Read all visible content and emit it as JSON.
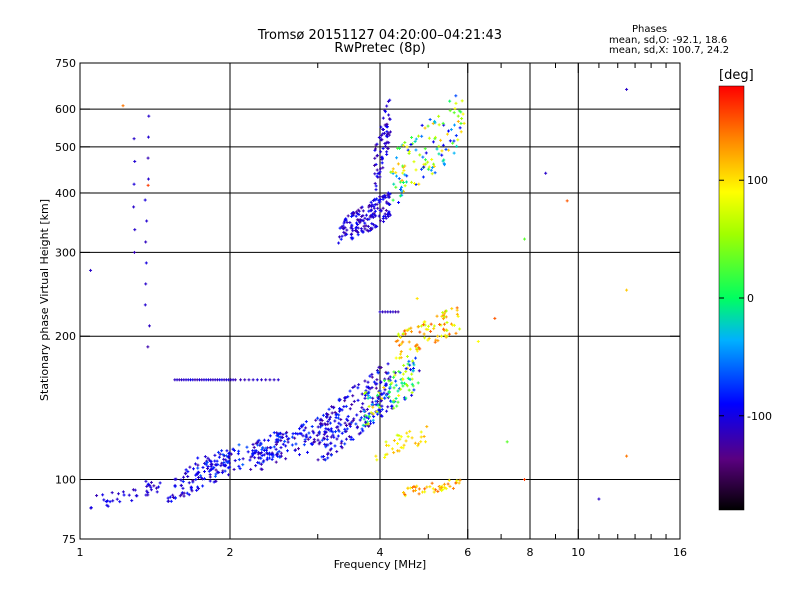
{
  "title": {
    "line1": "Tromsø 20151127 04:20:00–04:21:43",
    "line2": "RwPretec (8p)"
  },
  "annotation": {
    "heading": "Phases",
    "line1": "mean, sd,O: -92.1, 18.6",
    "line2": "mean, sd,X: 100.7, 24.2"
  },
  "colorbar": {
    "unit": "[deg]",
    "range": [
      -180,
      180
    ],
    "ticks": [
      100,
      0,
      -100
    ],
    "tick_labels": [
      "100",
      "0",
      "-100"
    ]
  },
  "chart_data": {
    "type": "scatter",
    "xlabel": "Frequency [MHz]",
    "ylabel": "Stationary phase Virtual Height [km]",
    "xscale": "log",
    "yscale": "log",
    "xlim": [
      1,
      16
    ],
    "ylim": [
      75,
      750
    ],
    "grid": true,
    "x_ticks": [
      1,
      2,
      4,
      6,
      8,
      10,
      16
    ],
    "x_tick_labels": [
      "1",
      "2",
      "4",
      "6",
      "8",
      "10",
      "16"
    ],
    "x_major_grid": [
      2,
      4,
      6,
      8,
      10
    ],
    "x_minor_ticks": [
      3,
      5,
      7,
      9,
      11,
      12,
      13,
      14,
      15
    ],
    "y_ticks": [
      75,
      100,
      200,
      300,
      400,
      500,
      600,
      750
    ],
    "y_tick_labels": [
      "75",
      "100",
      "200",
      "300",
      "400",
      "500",
      "600",
      "750"
    ],
    "y_major_grid": [
      100,
      200,
      300,
      400,
      500,
      600
    ],
    "clusters": [
      {
        "f_range": [
          1.05,
          1.45
        ],
        "h_range": [
          86,
          100
        ],
        "phase_range": [
          -120,
          -90
        ],
        "count": 40
      },
      {
        "f_range": [
          1.5,
          2.0
        ],
        "h_range": [
          90,
          115
        ],
        "phase_range": [
          -125,
          -80
        ],
        "count": 90
      },
      {
        "f_range": [
          1.7,
          2.6
        ],
        "h_range": [
          100,
          125
        ],
        "phase_range": [
          -120,
          -60
        ],
        "count": 110
      },
      {
        "f_range": [
          2.2,
          3.4
        ],
        "h_range": [
          105,
          140
        ],
        "phase_range": [
          -125,
          -70
        ],
        "count": 140
      },
      {
        "f_range": [
          3.0,
          4.2
        ],
        "h_range": [
          110,
          175
        ],
        "phase_range": [
          -130,
          -70
        ],
        "count": 200
      },
      {
        "f_range": [
          3.7,
          4.8
        ],
        "h_range": [
          130,
          180
        ],
        "phase_range": [
          -120,
          110
        ],
        "count": 120
      },
      {
        "f_range": [
          4.3,
          5.8
        ],
        "h_range": [
          180,
          230
        ],
        "phase_range": [
          60,
          150
        ],
        "count": 90
      },
      {
        "f_range": [
          3.3,
          4.2
        ],
        "h_range": [
          310,
          400
        ],
        "phase_range": [
          -125,
          -85
        ],
        "count": 170
      },
      {
        "f_range": [
          3.9,
          4.2
        ],
        "h_range": [
          400,
          640
        ],
        "phase_range": [
          -125,
          -90
        ],
        "count": 70
      },
      {
        "f_range": [
          4.2,
          5.9
        ],
        "h_range": [
          380,
          640
        ],
        "phase_range": [
          -110,
          120
        ],
        "count": 130
      },
      {
        "f_range": [
          4.4,
          5.8
        ],
        "h_range": [
          92,
          100
        ],
        "phase_range": [
          80,
          150
        ],
        "count": 45
      },
      {
        "f_range": [
          3.9,
          5.0
        ],
        "h_range": [
          110,
          130
        ],
        "phase_range": [
          70,
          120
        ],
        "count": 35
      }
    ],
    "lines": [
      {
        "f_range": [
          1.55,
          2.05
        ],
        "h": 162,
        "phase": -110,
        "count": 28
      },
      {
        "f_range": [
          2.1,
          2.5
        ],
        "h": 162,
        "phase": -110,
        "count": 10
      },
      {
        "f_range": [
          4.0,
          4.35
        ],
        "h": 225,
        "phase": -115,
        "count": 8
      },
      {
        "f_range": [
          1.35,
          1.38
        ],
        "h_range": [
          190,
          580
        ],
        "phase": -110,
        "count": 12
      },
      {
        "f_range": [
          1.28,
          1.29
        ],
        "h_range": [
          300,
          520
        ],
        "phase": -110,
        "count": 6
      }
    ],
    "points": [
      {
        "x": 1.22,
        "y": 610,
        "phase": 140
      },
      {
        "x": 1.05,
        "y": 275,
        "phase": -110
      },
      {
        "x": 1.37,
        "y": 415,
        "phase": 160
      },
      {
        "x": 7.8,
        "y": 320,
        "phase": 30
      },
      {
        "x": 8.6,
        "y": 440,
        "phase": -110
      },
      {
        "x": 9.5,
        "y": 385,
        "phase": 150
      },
      {
        "x": 12.5,
        "y": 660,
        "phase": -110
      },
      {
        "x": 12.5,
        "y": 250,
        "phase": 110
      },
      {
        "x": 12.5,
        "y": 112,
        "phase": 140
      },
      {
        "x": 11.0,
        "y": 91,
        "phase": -110
      },
      {
        "x": 7.2,
        "y": 120,
        "phase": 30
      },
      {
        "x": 6.3,
        "y": 195,
        "phase": 90
      },
      {
        "x": 6.8,
        "y": 218,
        "phase": 150
      },
      {
        "x": 7.8,
        "y": 100,
        "phase": 160
      },
      {
        "x": 4.75,
        "y": 240,
        "phase": 100
      },
      {
        "x": 5.9,
        "y": 560,
        "phase": 100
      }
    ]
  }
}
